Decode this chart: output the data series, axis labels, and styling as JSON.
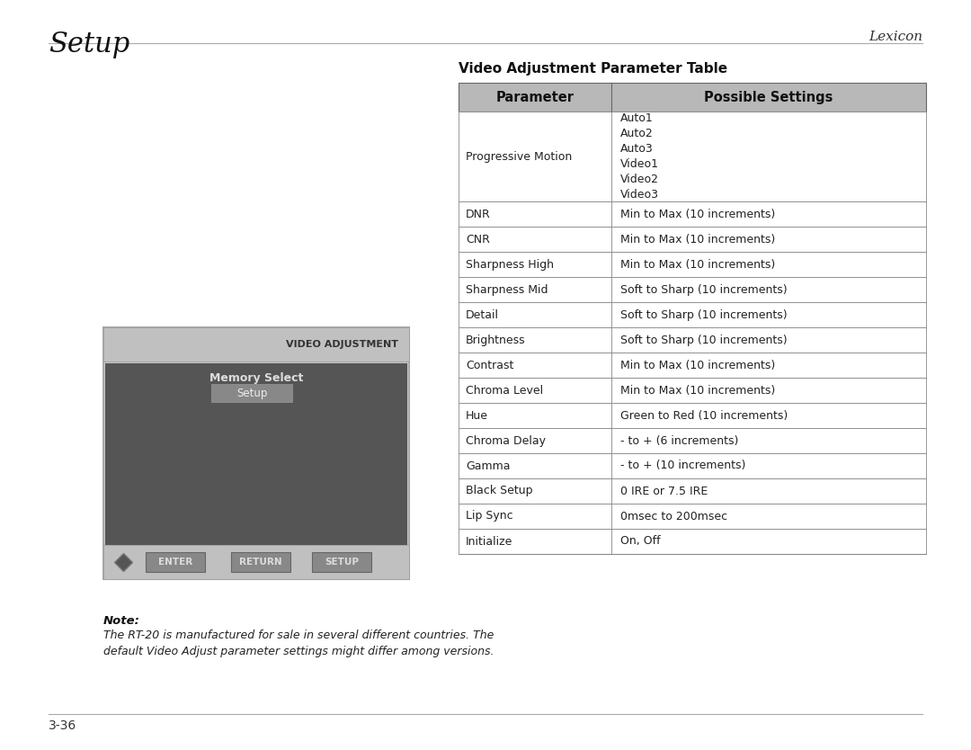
{
  "page_title_left": "Setup",
  "page_title_right": "Lexicon",
  "page_number": "3-36",
  "table_title": "Video Adjustment Parameter Table",
  "header_row": [
    "Parameter",
    "Possible Settings"
  ],
  "header_bg": "#b0b0b0",
  "table_rows": [
    [
      "Progressive Motion",
      "Auto1\nAuto2\nAuto3\nVideo1\nVideo2\nVideo3"
    ],
    [
      "DNR",
      "Min to Max (10 increments)"
    ],
    [
      "CNR",
      "Min to Max (10 increments)"
    ],
    [
      "Sharpness High",
      "Min to Max (10 increments)"
    ],
    [
      "Sharpness Mid",
      "Soft to Sharp (10 increments)"
    ],
    [
      "Detail",
      "Soft to Sharp (10 increments)"
    ],
    [
      "Brightness",
      "Soft to Sharp (10 increments)"
    ],
    [
      "Contrast",
      "Min to Max (10 increments)"
    ],
    [
      "Chroma Level",
      "Min to Max (10 increments)"
    ],
    [
      "Hue",
      "Green to Red (10 increments)"
    ],
    [
      "Chroma Delay",
      "- to + (6 increments)"
    ],
    [
      "Gamma",
      "- to + (10 increments)"
    ],
    [
      "Black Setup",
      "0 IRE or 7.5 IRE"
    ],
    [
      "Lip Sync",
      "0msec to 200msec"
    ],
    [
      "Initialize",
      "On, Off"
    ]
  ],
  "note_label": "Note:",
  "note_text": "The RT-20 is manufactured for sale in several different countries. The\ndefault Video Adjust parameter settings might differ among versions.",
  "screen_title": "VIDEO ADJUSTMENT",
  "screen_menu_item": "Memory Select",
  "screen_submenu_item": "Setup",
  "screen_buttons": [
    "ENTER",
    "RETURN",
    "SETUP"
  ],
  "bg_color": "#ffffff",
  "table_border_color": "#888888",
  "row_alt_color": "#ffffff",
  "text_color": "#222222",
  "header_text_color": "#111111"
}
